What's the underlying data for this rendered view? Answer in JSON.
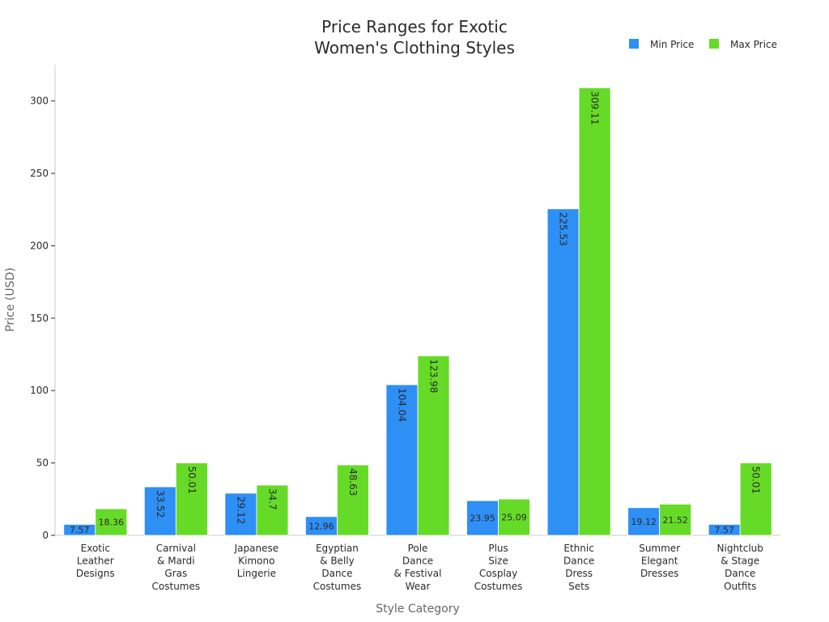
{
  "chart_data": {
    "type": "bar",
    "title": [
      "Price Ranges for Exotic",
      "Women's Clothing Styles"
    ],
    "xlabel": "Style Category",
    "ylabel": "Price (USD)",
    "ylim": [
      0,
      325
    ],
    "yticks": [
      0,
      50,
      100,
      150,
      200,
      250,
      300
    ],
    "grid": false,
    "legend_position": "top-right",
    "categories": [
      [
        "Exotic",
        "Leather",
        "Designs"
      ],
      [
        "Carnival",
        "& Mardi",
        "Gras",
        "Costumes"
      ],
      [
        "Japanese",
        "Kimono",
        "Lingerie"
      ],
      [
        "Egyptian",
        "& Belly",
        "Dance",
        "Costumes"
      ],
      [
        "Pole",
        "Dance",
        "& Festival",
        "Wear"
      ],
      [
        "Plus",
        "Size",
        "Cosplay",
        "Costumes"
      ],
      [
        "Ethnic",
        "Dance",
        "Dress",
        "Sets"
      ],
      [
        "Summer",
        "Elegant",
        "Dresses"
      ],
      [
        "Nightclub",
        "& Stage",
        "Dance",
        "Outfits"
      ]
    ],
    "series": [
      {
        "name": "Min Price",
        "color": "#2E8FF5",
        "values": [
          7.57,
          33.52,
          29.12,
          12.96,
          104.04,
          23.95,
          225.53,
          19.12,
          7.57
        ],
        "labels": [
          "7.57",
          "33.52",
          "29.12",
          "12.96",
          "104.04",
          "23.95",
          "225.53",
          "19.12",
          "7.57"
        ]
      },
      {
        "name": "Max Price",
        "color": "#66DB27",
        "values": [
          18.36,
          50.01,
          34.7,
          48.63,
          123.98,
          25.09,
          309.11,
          21.52,
          50.01
        ],
        "labels": [
          "18.36",
          "50.01",
          "34.7",
          "48.63",
          "123.98",
          "25.09",
          "309.11",
          "21.52",
          "50.01"
        ]
      }
    ]
  }
}
